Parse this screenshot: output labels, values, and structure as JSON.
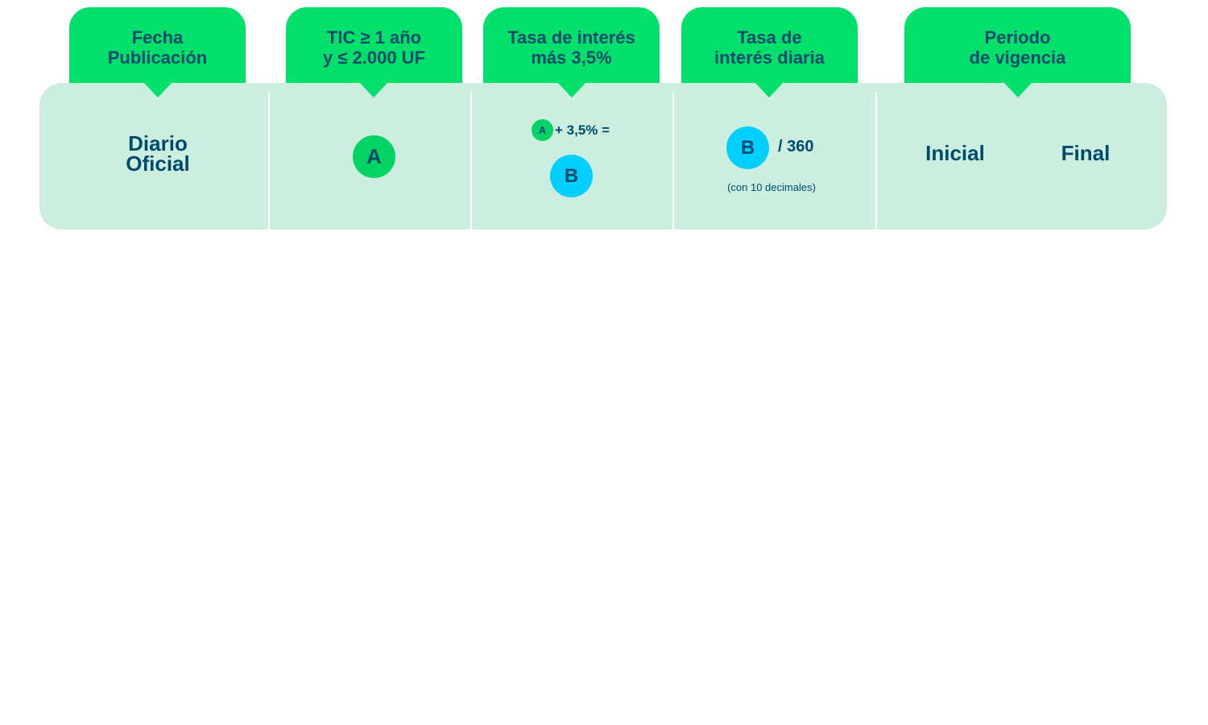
{
  "colors": {
    "header_green": "#00e06a",
    "panel_mint": "#cbeedf",
    "text_navy": "#004a6e",
    "circle_green": "#00d464",
    "circle_cyan": "#00cfff"
  },
  "headers": {
    "fecha": "Fecha\nPublicación",
    "tic": "TIC ≥ 1 año\ny ≤ 2.000 UF",
    "tasa_mas": "Tasa de interés\nmás 3,5%",
    "tasa_diaria": "Tasa de\ninterés diaria",
    "periodo": "Periodo\nde vigencia"
  },
  "cells": {
    "fecha_value": "Diario\nOficial",
    "tic_circle": "A",
    "tasa_mas_small_circle": "A",
    "tasa_mas_formula": "+ 3,5% =",
    "tasa_mas_result_circle": "B",
    "tasa_diaria_circle": "B",
    "tasa_diaria_formula": "/ 360",
    "tasa_diaria_note": "(con 10 decimales)",
    "periodo_inicial": "Inicial",
    "periodo_final": "Final"
  }
}
